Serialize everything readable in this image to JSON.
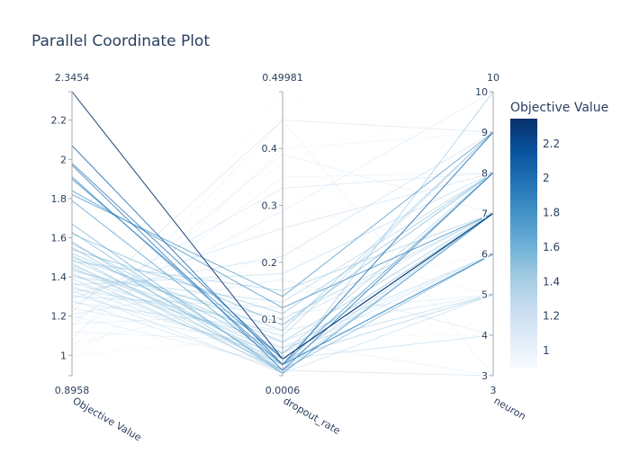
{
  "chart_data": {
    "type": "parallel_coordinates",
    "title": "Parallel Coordinate Plot",
    "dimensions": [
      {
        "label": "Objective Value",
        "range": [
          0.8958,
          2.3454
        ],
        "range_labels": [
          "0.8958",
          "2.3454"
        ],
        "ticks": [
          "1",
          "1.2",
          "1.4",
          "1.6",
          "1.8",
          "2",
          "2.2"
        ]
      },
      {
        "label": "dropout_rate",
        "range": [
          0.0006,
          0.49981
        ],
        "range_labels": [
          "0.0006",
          "0.49981"
        ],
        "ticks": [
          "0.1",
          "0.2",
          "0.3",
          "0.4"
        ]
      },
      {
        "label": "neuron",
        "range": [
          3,
          10
        ],
        "range_labels": [
          "3",
          "10"
        ],
        "ticks": [
          "3",
          "4",
          "5",
          "6",
          "7",
          "8",
          "9",
          "10"
        ]
      }
    ],
    "colorbar": {
      "title": "Objective Value",
      "ticks": [
        "1",
        "1.2",
        "1.4",
        "1.6",
        "1.8",
        "2",
        "2.2"
      ],
      "colorscale": "Blues",
      "colors": [
        "#f7fbff",
        "#deebf7",
        "#c6dbef",
        "#9ecae1",
        "#6baed6",
        "#4292c6",
        "#2171b5",
        "#08519c",
        "#08306b"
      ]
    },
    "lines": [
      [
        2.3454,
        0.03,
        7
      ],
      [
        2.07,
        0.02,
        9
      ],
      [
        1.98,
        0.03,
        7
      ],
      [
        1.97,
        0.01,
        8
      ],
      [
        1.91,
        0.02,
        6
      ],
      [
        1.9,
        0.03,
        7
      ],
      [
        1.84,
        0.12,
        7
      ],
      [
        1.82,
        0.14,
        9
      ],
      [
        1.79,
        0.02,
        8
      ],
      [
        1.67,
        0.005,
        7
      ],
      [
        1.63,
        0.01,
        6
      ],
      [
        1.62,
        0.09,
        8
      ],
      [
        1.58,
        0.005,
        7
      ],
      [
        1.57,
        0.04,
        7
      ],
      [
        1.55,
        0.02,
        6
      ],
      [
        1.54,
        0.11,
        8
      ],
      [
        1.52,
        0.06,
        7
      ],
      [
        1.51,
        0.01,
        10
      ],
      [
        1.5,
        0.08,
        9
      ],
      [
        1.49,
        0.03,
        5
      ],
      [
        1.48,
        0.15,
        7
      ],
      [
        1.47,
        0.005,
        7
      ],
      [
        1.46,
        0.04,
        8
      ],
      [
        1.45,
        0.02,
        6
      ],
      [
        1.44,
        0.07,
        9
      ],
      [
        1.43,
        0.1,
        7
      ],
      [
        1.42,
        0.01,
        7
      ],
      [
        1.41,
        0.05,
        5
      ],
      [
        1.4,
        0.13,
        8
      ],
      [
        1.39,
        0.02,
        7
      ],
      [
        1.37,
        0.06,
        6
      ],
      [
        1.36,
        0.18,
        8
      ],
      [
        1.35,
        0.03,
        4
      ],
      [
        1.34,
        0.09,
        7
      ],
      [
        1.33,
        0.005,
        5
      ],
      [
        1.32,
        0.21,
        9
      ],
      [
        1.31,
        0.04,
        6
      ],
      [
        1.3,
        0.12,
        7
      ],
      [
        1.29,
        0.26,
        8
      ],
      [
        1.28,
        0.01,
        3
      ],
      [
        1.27,
        0.08,
        5
      ],
      [
        1.25,
        0.33,
        8
      ],
      [
        1.24,
        0.05,
        6
      ],
      [
        1.22,
        0.45,
        9
      ],
      [
        1.21,
        0.17,
        4
      ],
      [
        1.2,
        0.02,
        7
      ],
      [
        1.18,
        0.29,
        10
      ],
      [
        1.16,
        0.11,
        5
      ],
      [
        1.15,
        0.39,
        7
      ],
      [
        1.12,
        0.06,
        3
      ],
      [
        1.1,
        0.35,
        8
      ],
      [
        1.08,
        0.45,
        3
      ],
      [
        1.06,
        0.14,
        6
      ],
      [
        1.04,
        0.4,
        9
      ],
      [
        1.02,
        0.23,
        5
      ],
      [
        1.0,
        0.07,
        4
      ],
      [
        0.98,
        0.3,
        6
      ],
      [
        0.95,
        0.49981,
        8
      ],
      [
        0.93,
        0.38,
        10
      ],
      [
        0.8958,
        0.2,
        5
      ]
    ]
  }
}
